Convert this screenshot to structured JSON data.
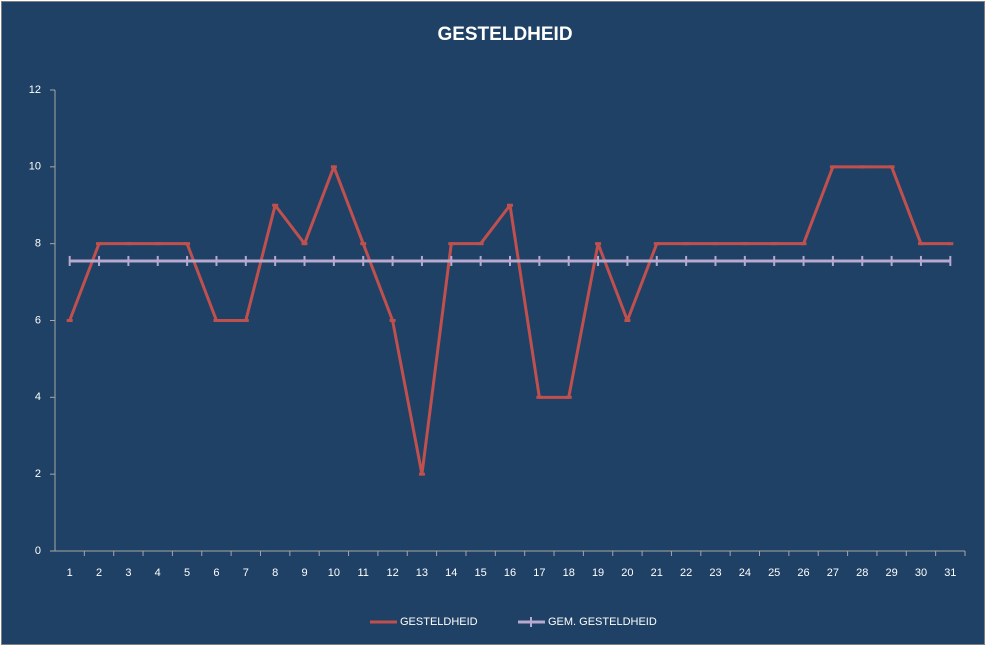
{
  "chart_data": {
    "type": "line",
    "title": "GESTELDHEID",
    "categories": [
      1,
      2,
      3,
      4,
      5,
      6,
      7,
      8,
      9,
      10,
      11,
      12,
      13,
      14,
      15,
      16,
      17,
      18,
      19,
      20,
      21,
      22,
      23,
      24,
      25,
      26,
      27,
      28,
      29,
      30,
      31
    ],
    "series": [
      {
        "name": "GESTELDHEID",
        "color": "#c0504d",
        "marker": "dash",
        "values": [
          6,
          8,
          8,
          8,
          8,
          6,
          6,
          9,
          8,
          10,
          8,
          6,
          2,
          8,
          8,
          9,
          4,
          4,
          8,
          6,
          8,
          8,
          8,
          8,
          8,
          8,
          10,
          10,
          10,
          8,
          8
        ]
      },
      {
        "name": "GEM. GESTELDHEID",
        "color": "#b7a9cf",
        "marker": "plus",
        "values": [
          7.55,
          7.55,
          7.55,
          7.55,
          7.55,
          7.55,
          7.55,
          7.55,
          7.55,
          7.55,
          7.55,
          7.55,
          7.55,
          7.55,
          7.55,
          7.55,
          7.55,
          7.55,
          7.55,
          7.55,
          7.55,
          7.55,
          7.55,
          7.55,
          7.55,
          7.55,
          7.55,
          7.55,
          7.55,
          7.55,
          7.55
        ]
      }
    ],
    "ylim": [
      0,
      12
    ],
    "yticks": [
      0,
      2,
      4,
      6,
      8,
      10,
      12
    ],
    "grid": false,
    "legend": "bottom"
  }
}
